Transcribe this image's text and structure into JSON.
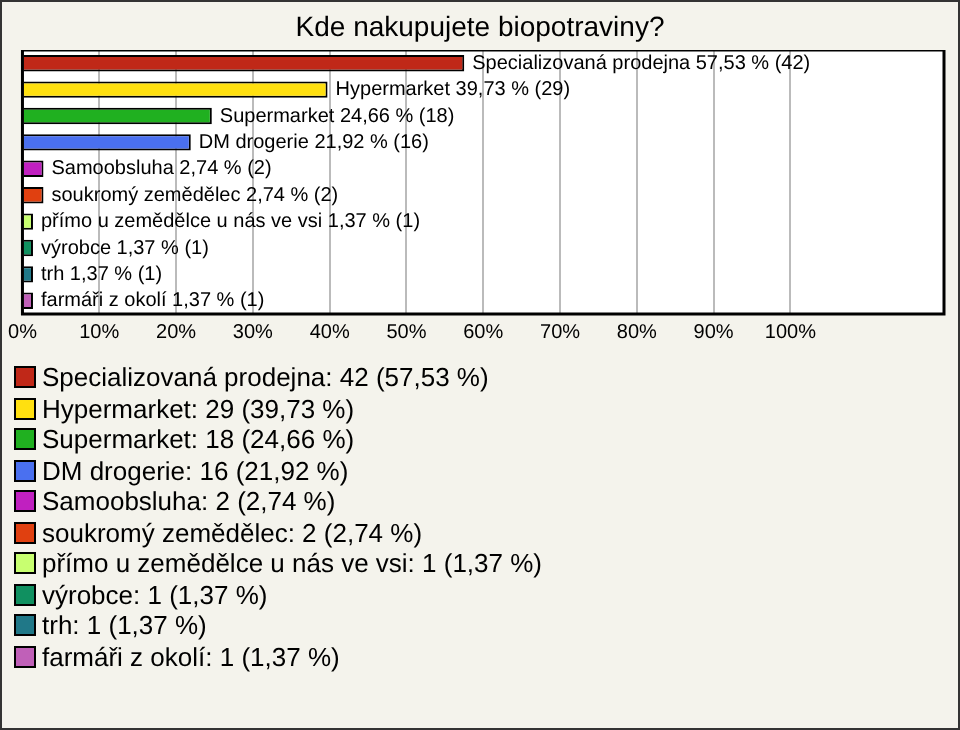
{
  "chart_data": {
    "type": "bar",
    "orientation": "horizontal",
    "title": "Kde nakupujete biopotraviny?",
    "categories": [
      "Specializovaná prodejna",
      "Hypermarket",
      "Supermarket",
      "DM drogerie",
      "Samoobsluha",
      "soukromý zemědělec",
      "přímo u zemědělce u nás ve vsi",
      "výrobce",
      "trh",
      "farmáři z okolí"
    ],
    "values": [
      57.53,
      39.73,
      24.66,
      21.92,
      2.74,
      2.74,
      1.37,
      1.37,
      1.37,
      1.37
    ],
    "colors": [
      "#c02818",
      "#ffe010",
      "#20b020",
      "#4a70f0",
      "#c020c0",
      "#e04010",
      "#c8ff70",
      "#109060",
      "#207888",
      "#c060b8"
    ],
    "value_labels": [
      "57,53 % (42)",
      "39,73 % (29)",
      "24,66 % (18)",
      "21,92 % (16)",
      "2,74 % (2)",
      "2,74 % (2)",
      "1,37 % (1)",
      "1,37 % (1)",
      "1,37 % (1)",
      "1,37 % (1)"
    ],
    "xlim": [
      0,
      120
    ],
    "xticks": [
      {
        "value": 0,
        "label": "0%"
      },
      {
        "value": 10,
        "label": "10%"
      },
      {
        "value": 20,
        "label": "20%"
      },
      {
        "value": 30,
        "label": "30%"
      },
      {
        "value": 40,
        "label": "40%"
      },
      {
        "value": 50,
        "label": "50%"
      },
      {
        "value": 60,
        "label": "60%"
      },
      {
        "value": 70,
        "label": "70%"
      },
      {
        "value": 80,
        "label": "80%"
      },
      {
        "value": 90,
        "label": "90%"
      },
      {
        "value": 100,
        "label": "100%"
      }
    ],
    "grid": "x",
    "tick_labels": "x",
    "annotations": [
      "Specializovaná prodejna: 42 (57,53 %)",
      "Hypermarket: 29 (39,73 %)",
      "Supermarket: 18 (24,66 %)",
      "DM drogerie: 16 (21,92 %)",
      "Samoobsluha: 2 (2,74 %)",
      "soukromý zemědělec: 2 (2,74 %)",
      "přímo u zemědělce u nás ve vsi: 1 (1,37 %)",
      "výrobce: 1 (1,37 %)",
      "trh: 1 (1,37 %)",
      "farmáři z okolí: 1 (1,37 %)"
    ]
  }
}
